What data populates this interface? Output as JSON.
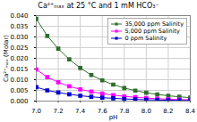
{
  "chart_data": {
    "type": "line",
    "title": "Ca²⁺ₘₐₓ at 25 °C and 1 mM HCO₃⁻",
    "xlabel": "pH",
    "ylabel": "Ca²⁺ₘₐₓ (Molar)",
    "x": [
      7.0,
      7.1,
      7.2,
      7.3,
      7.4,
      7.5,
      7.6,
      7.7,
      7.8,
      7.9,
      8.0,
      8.1,
      8.2,
      8.3,
      8.4
    ],
    "xlim": [
      7.0,
      8.4
    ],
    "xticks": [
      {
        "value": 7.0,
        "label": "7.0"
      },
      7.2,
      7.4,
      7.6,
      7.8,
      {
        "value": 8.0,
        "label": "8.0"
      },
      8.2,
      8.4
    ],
    "ylim": [
      0.0,
      0.04
    ],
    "yticks": [
      {
        "value": 0.0,
        "label": "0.000"
      },
      0.005,
      {
        "value": 0.01,
        "label": "0.010"
      },
      0.015,
      {
        "value": 0.02,
        "label": "0.020"
      },
      0.025,
      {
        "value": 0.03,
        "label": "0.030"
      },
      0.035,
      {
        "value": 0.04,
        "label": "0.040"
      }
    ],
    "grid": true,
    "legend": "upper right",
    "series": [
      {
        "name": "35,000 ppm Salinity",
        "color": "#2d6e2d",
        "marker": "square",
        "values": [
          0.0385,
          0.0305,
          0.0245,
          0.0195,
          0.0155,
          0.0122,
          0.0097,
          0.0077,
          0.0061,
          0.0049,
          0.0039,
          0.0031,
          0.0025,
          0.002,
          0.0016
        ]
      },
      {
        "name": "5,000 ppm Salinity",
        "color": "#ff00ff",
        "marker": "square",
        "values": [
          0.0148,
          0.0112,
          0.0088,
          0.0069,
          0.0055,
          0.0044,
          0.0035,
          0.0028,
          0.0022,
          0.0018,
          0.0014,
          0.0011,
          0.0009,
          0.0007,
          0.0006
        ]
      },
      {
        "name": "0 ppm Salinity",
        "color": "#0000cc",
        "marker": "square",
        "values": [
          0.0065,
          0.005,
          0.004,
          0.0032,
          0.0025,
          0.002,
          0.0016,
          0.0013,
          0.001,
          0.0008,
          0.0006,
          0.0005,
          0.0004,
          0.0003,
          0.0003
        ]
      }
    ]
  }
}
